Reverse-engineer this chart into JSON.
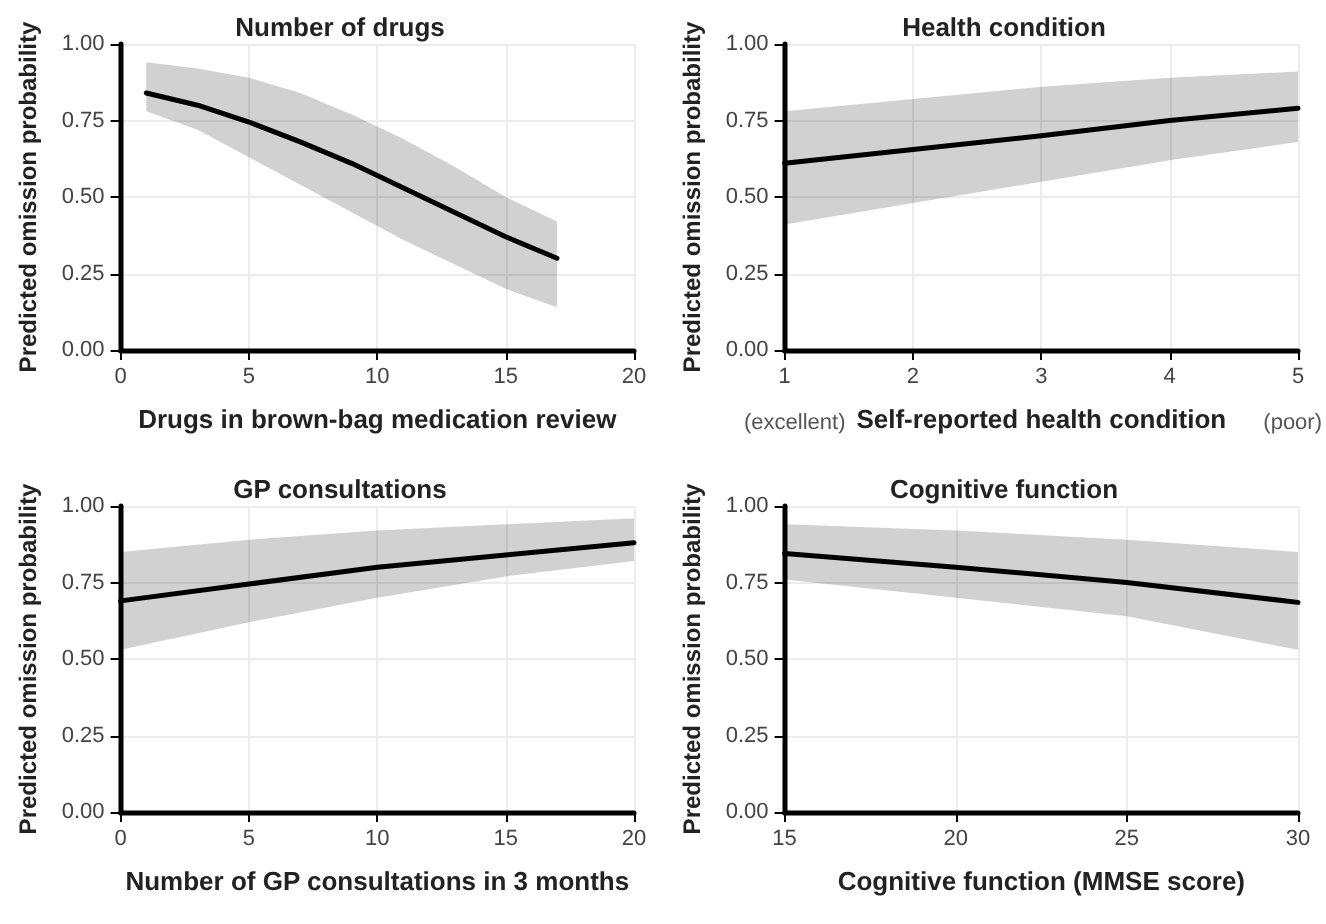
{
  "chart_data": [
    {
      "type": "line",
      "title": "Number of drugs",
      "xlabel": "Drugs in brown-bag medication review",
      "ylabel": "Predicted omission probability",
      "xlim": [
        0,
        20
      ],
      "xticks": [
        0,
        5,
        10,
        15,
        20
      ],
      "ylim": [
        0,
        1
      ],
      "yticks": [
        {
          "value": 0,
          "label": "0.00"
        },
        {
          "value": 0.25,
          "label": "0.25"
        },
        {
          "value": 0.5,
          "label": "0.50"
        },
        {
          "value": 0.75,
          "label": "0.75"
        },
        {
          "value": 1,
          "label": "1.00"
        }
      ],
      "grid": true,
      "marker": "none",
      "line_style": "solid",
      "x": [
        1,
        3,
        5,
        7,
        9,
        11,
        13,
        15,
        17
      ],
      "series": [
        {
          "color": "#000000",
          "values": [
            0.84,
            0.8,
            0.745,
            0.68,
            0.61,
            0.53,
            0.45,
            0.37,
            0.3
          ],
          "lower": [
            0.78,
            0.72,
            0.63,
            0.54,
            0.45,
            0.36,
            0.28,
            0.2,
            0.14
          ],
          "upper": [
            0.94,
            0.92,
            0.89,
            0.84,
            0.77,
            0.69,
            0.6,
            0.5,
            0.42
          ]
        }
      ]
    },
    {
      "type": "line",
      "title": "Health condition",
      "xlabel": "Self-reported health condition",
      "ylabel": "Predicted omission probability",
      "annotations": [
        "(excellent)",
        "(poor)"
      ],
      "xlim": [
        1,
        5
      ],
      "xticks": [
        1,
        2,
        3,
        4,
        5
      ],
      "ylim": [
        0,
        1
      ],
      "yticks": [
        {
          "value": 0,
          "label": "0.00"
        },
        {
          "value": 0.25,
          "label": "0.25"
        },
        {
          "value": 0.5,
          "label": "0.50"
        },
        {
          "value": 0.75,
          "label": "0.75"
        },
        {
          "value": 1,
          "label": "1.00"
        }
      ],
      "grid": true,
      "marker": "none",
      "line_style": "solid",
      "x": [
        1,
        2,
        3,
        4,
        5
      ],
      "series": [
        {
          "color": "#000000",
          "values": [
            0.61,
            0.655,
            0.7,
            0.75,
            0.79
          ],
          "lower": [
            0.41,
            0.48,
            0.55,
            0.62,
            0.68
          ],
          "upper": [
            0.78,
            0.82,
            0.86,
            0.89,
            0.91
          ]
        }
      ]
    },
    {
      "type": "line",
      "title": "GP consultations",
      "xlabel": "Number of GP consultations in 3 months",
      "ylabel": "Predicted omission probability",
      "xlim": [
        0,
        20
      ],
      "xticks": [
        0,
        5,
        10,
        15,
        20
      ],
      "ylim": [
        0,
        1
      ],
      "yticks": [
        {
          "value": 0,
          "label": "0.00"
        },
        {
          "value": 0.25,
          "label": "0.25"
        },
        {
          "value": 0.5,
          "label": "0.50"
        },
        {
          "value": 0.75,
          "label": "0.75"
        },
        {
          "value": 1,
          "label": "1.00"
        }
      ],
      "grid": true,
      "marker": "none",
      "line_style": "solid",
      "x": [
        0,
        5,
        10,
        15,
        20
      ],
      "series": [
        {
          "color": "#000000",
          "values": [
            0.69,
            0.745,
            0.8,
            0.84,
            0.88
          ],
          "lower": [
            0.53,
            0.62,
            0.7,
            0.77,
            0.82
          ],
          "upper": [
            0.85,
            0.89,
            0.92,
            0.94,
            0.96
          ]
        }
      ]
    },
    {
      "type": "line",
      "title": "Cognitive function",
      "xlabel": "Cognitive function (MMSE score)",
      "ylabel": "Predicted omission probability",
      "xlim": [
        15,
        30
      ],
      "xticks": [
        15,
        20,
        25,
        30
      ],
      "ylim": [
        0,
        1
      ],
      "yticks": [
        {
          "value": 0,
          "label": "0.00"
        },
        {
          "value": 0.25,
          "label": "0.25"
        },
        {
          "value": 0.5,
          "label": "0.50"
        },
        {
          "value": 0.75,
          "label": "0.75"
        },
        {
          "value": 1,
          "label": "1.00"
        }
      ],
      "grid": true,
      "marker": "none",
      "line_style": "solid",
      "x": [
        15,
        20,
        25,
        30
      ],
      "series": [
        {
          "color": "#000000",
          "values": [
            0.845,
            0.8,
            0.75,
            0.685
          ],
          "lower": [
            0.76,
            0.7,
            0.64,
            0.53
          ],
          "upper": [
            0.94,
            0.92,
            0.89,
            0.85
          ]
        }
      ]
    }
  ]
}
